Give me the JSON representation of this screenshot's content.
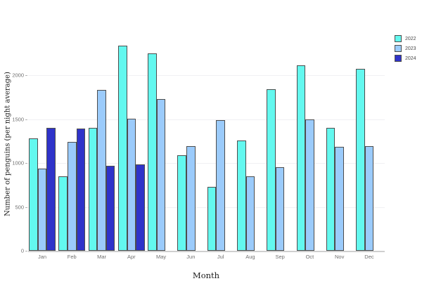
{
  "chart_data": {
    "type": "bar",
    "title": "",
    "xlabel": "Month",
    "ylabel": "Number of penguins (per night average)",
    "categories": [
      "Jan",
      "Feb",
      "Mar",
      "Apr",
      "May",
      "Jun",
      "Jul",
      "Aug",
      "Sep",
      "Oct",
      "Nov",
      "Dec"
    ],
    "series": [
      {
        "name": "2022",
        "color": "#63f8ef",
        "values": [
          1280,
          850,
          1400,
          2335,
          2245,
          1090,
          730,
          1260,
          1840,
          2110,
          1400,
          2075
        ]
      },
      {
        "name": "2023",
        "color": "#9bcbfb",
        "values": [
          940,
          1240,
          1835,
          1505,
          1730,
          1190,
          1490,
          850,
          950,
          1495,
          1185,
          1195
        ]
      },
      {
        "name": "2024",
        "color": "#2f33c9",
        "values": [
          1400,
          1390,
          970,
          985,
          null,
          null,
          null,
          null,
          null,
          null,
          null,
          null
        ]
      }
    ],
    "yticks": [
      0,
      500,
      1000,
      1500,
      2000
    ],
    "ylim": [
      0,
      2450
    ],
    "grid": true,
    "legend_position": "top-right",
    "bar_outline_color": "#4d4d4d",
    "axis_line_color": "#cfcfcf",
    "tick_label_color": "#707070"
  }
}
